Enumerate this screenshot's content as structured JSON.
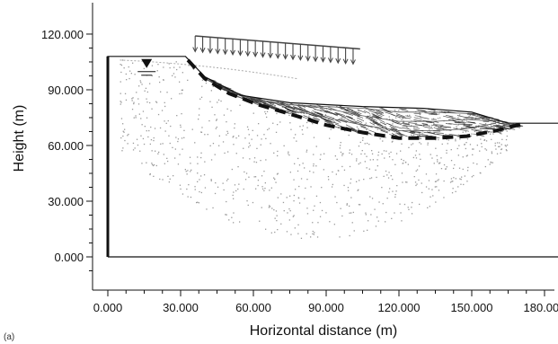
{
  "figure": {
    "xlabel": "Horizontal distance (m)",
    "ylabel": "Height (m)",
    "corner_mark": "(a)"
  },
  "chart_data": {
    "type": "scatter",
    "xlabel": "Horizontal distance (m)",
    "ylabel": "Height (m)",
    "xlim": [
      -10,
      195
    ],
    "ylim": [
      -15,
      125
    ],
    "x_ticks": [
      0,
      30,
      60,
      90,
      120,
      150,
      180
    ],
    "y_ticks": [
      0,
      30,
      60,
      90,
      120
    ],
    "x_tick_labels": [
      "0.000",
      "30.000",
      "60.000",
      "90.000",
      "120.000",
      "150.000",
      "180.000"
    ],
    "y_tick_labels": [
      "0.000",
      "30.000",
      "60.000",
      "90.000",
      "120.000"
    ],
    "grid": false,
    "model_boundary": [
      [
        0,
        0
      ],
      [
        0,
        108
      ],
      [
        32,
        108
      ],
      [
        40,
        97
      ],
      [
        55,
        87
      ],
      [
        75,
        83
      ],
      [
        105,
        81
      ],
      [
        130,
        80
      ],
      [
        150,
        78
      ],
      [
        165,
        72
      ],
      [
        192,
        72
      ],
      [
        192,
        0
      ],
      [
        0,
        0
      ]
    ],
    "slip_surface": [
      [
        33,
        106
      ],
      [
        40,
        96
      ],
      [
        50,
        88
      ],
      [
        62,
        82
      ],
      [
        75,
        77
      ],
      [
        90,
        71
      ],
      [
        105,
        67
      ],
      [
        120,
        64
      ],
      [
        135,
        64
      ],
      [
        148,
        65
      ],
      [
        160,
        68
      ],
      [
        172,
        72
      ]
    ],
    "surface_load": {
      "x_start": 36,
      "x_end": 104,
      "y_top_start": 119,
      "y_top_end": 112
    },
    "water_table_marker": {
      "x": 16,
      "y": 108
    },
    "colors": {
      "axis": "#111111",
      "slip": "#111111",
      "mesh": "#9a9a9a",
      "vectors": "#333333"
    }
  }
}
